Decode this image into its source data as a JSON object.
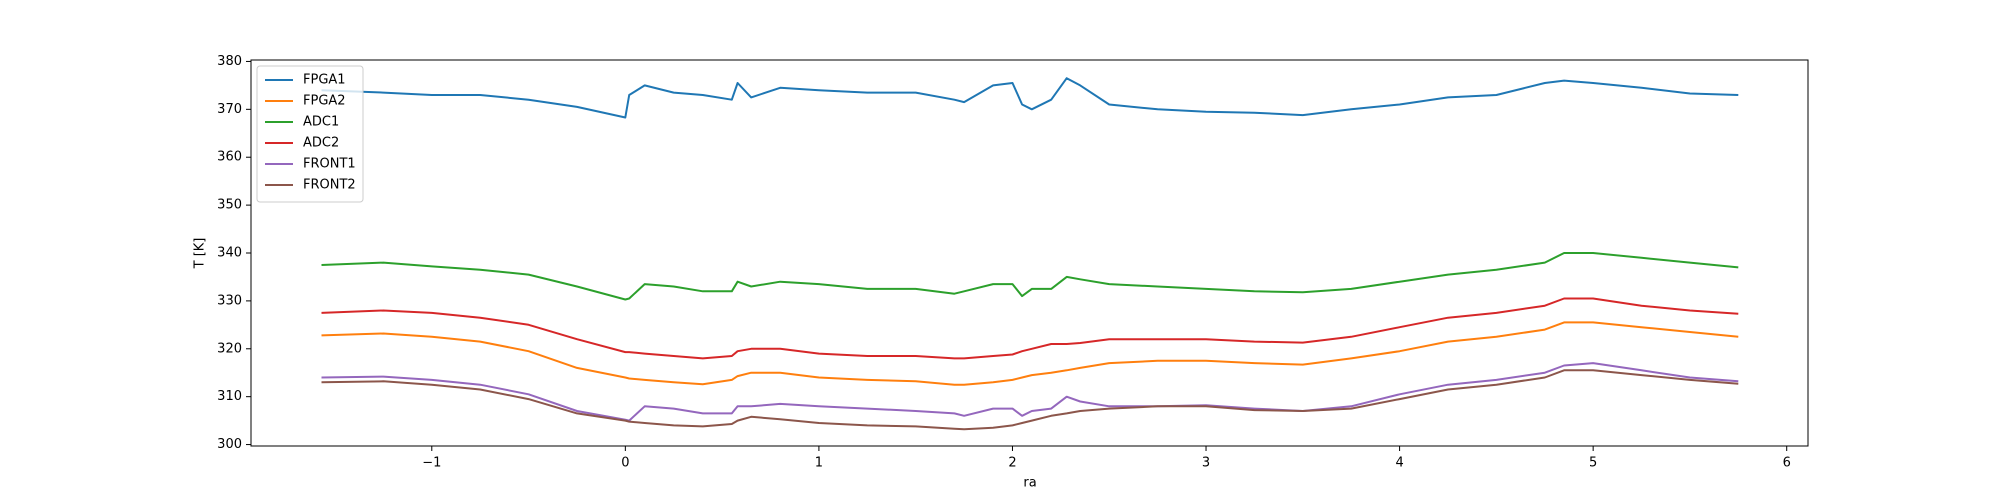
{
  "chart_data": {
    "type": "line",
    "xlabel": "ra",
    "ylabel": "T [K]",
    "x": [
      -1.57,
      -1.25,
      -1.0,
      -0.75,
      -0.5,
      -0.25,
      0.0,
      0.02,
      0.1,
      0.25,
      0.4,
      0.55,
      0.58,
      0.65,
      0.8,
      1.0,
      1.25,
      1.5,
      1.7,
      1.75,
      1.9,
      2.0,
      2.05,
      2.1,
      2.2,
      2.28,
      2.35,
      2.5,
      2.75,
      3.0,
      3.25,
      3.5,
      3.75,
      4.0,
      4.25,
      4.5,
      4.75,
      4.85,
      5.0,
      5.25,
      5.5,
      5.75
    ],
    "series": [
      {
        "name": "FPGA1",
        "color": "#1f77b4",
        "values": [
          374,
          373.5,
          373,
          373,
          372,
          370.5,
          368.3,
          373,
          375,
          373.5,
          373,
          372,
          375.5,
          372.5,
          374.5,
          374,
          373.5,
          373.5,
          372,
          371.5,
          375,
          375.5,
          371,
          370,
          372,
          376.5,
          375,
          371,
          370,
          369.5,
          369.3,
          368.8,
          370,
          371,
          372.5,
          373,
          375.5,
          376,
          375.5,
          374.5,
          373.3,
          373
        ]
      },
      {
        "name": "FPGA2",
        "color": "#ff7f0e",
        "values": [
          322.8,
          323.2,
          322.5,
          321.5,
          319.5,
          316,
          314,
          313.8,
          313.5,
          313,
          312.6,
          313.5,
          314.3,
          315,
          315,
          314,
          313.5,
          313.2,
          312.5,
          312.5,
          313,
          313.5,
          314,
          314.5,
          315,
          315.5,
          316,
          317,
          317.5,
          317.5,
          317,
          316.7,
          318,
          319.5,
          321.5,
          322.5,
          324,
          325.5,
          325.5,
          324.5,
          323.5,
          322.5
        ]
      },
      {
        "name": "ADC1",
        "color": "#2ca02c",
        "values": [
          337.5,
          338,
          337.2,
          336.5,
          335.5,
          333,
          330.3,
          330.5,
          333.5,
          333,
          332,
          332,
          334,
          333,
          334,
          333.5,
          332.5,
          332.5,
          331.5,
          332,
          333.5,
          333.5,
          331,
          332.5,
          332.5,
          335,
          334.5,
          333.5,
          333,
          332.5,
          332,
          331.8,
          332.5,
          334,
          335.5,
          336.5,
          338,
          340,
          340,
          339,
          338,
          337
        ]
      },
      {
        "name": "ADC2",
        "color": "#d62728",
        "values": [
          327.5,
          328,
          327.5,
          326.5,
          325,
          322,
          319.3,
          319.3,
          319,
          318.5,
          318,
          318.5,
          319.5,
          320,
          320,
          319,
          318.5,
          318.5,
          318,
          318,
          318.5,
          318.8,
          319.5,
          320,
          321,
          321,
          321.2,
          322,
          322,
          322,
          321.5,
          321.3,
          322.5,
          324.5,
          326.5,
          327.5,
          329,
          330.5,
          330.5,
          329,
          328,
          327.3
        ]
      },
      {
        "name": "FRONT1",
        "color": "#9467bd",
        "values": [
          314,
          314.2,
          313.5,
          312.5,
          310.5,
          307,
          305.2,
          305,
          308,
          307.5,
          306.5,
          306.5,
          308,
          308,
          308.5,
          308,
          307.5,
          307,
          306.5,
          306,
          307.5,
          307.5,
          306,
          307,
          307.5,
          310,
          309,
          308,
          308,
          308.2,
          307.5,
          307,
          308,
          310.5,
          312.5,
          313.5,
          315,
          316.5,
          317,
          315.5,
          314,
          313.2
        ]
      },
      {
        "name": "FRONT2",
        "color": "#8c564b",
        "values": [
          313,
          313.2,
          312.5,
          311.5,
          309.5,
          306.5,
          305,
          304.8,
          304.5,
          304,
          303.8,
          304.3,
          305,
          305.8,
          305.3,
          304.5,
          304,
          303.8,
          303.3,
          303.2,
          303.5,
          304,
          304.5,
          305,
          306,
          306.5,
          307,
          307.5,
          308,
          308,
          307.2,
          307,
          307.5,
          309.5,
          311.5,
          312.5,
          314,
          315.5,
          315.5,
          314.5,
          313.5,
          312.7
        ]
      }
    ],
    "xlim": [
      -1.934,
      6.11
    ],
    "xticks": [
      {
        "value": -1,
        "label": "−1"
      },
      0,
      1,
      2,
      3,
      4,
      5,
      6
    ],
    "ylim": [
      299.7,
      380.3
    ],
    "yticks": [
      300,
      310,
      320,
      330,
      340,
      350,
      360,
      370,
      380
    ],
    "legend": "upper left",
    "grid": false
  }
}
